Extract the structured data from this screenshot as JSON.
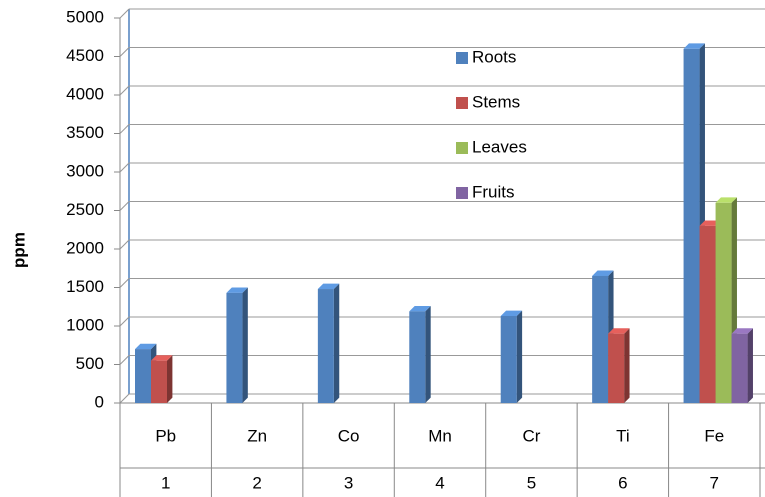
{
  "chart_data": {
    "type": "bar3d",
    "y_label": "ppm",
    "categories": [
      "Pb",
      "Zn",
      "Co",
      "Mn",
      "Cr",
      "Ti",
      "Fe"
    ],
    "categories_level2": [
      1,
      2,
      3,
      4,
      5,
      6,
      7
    ],
    "series": [
      {
        "name": "Roots",
        "color": "#4f81bd",
        "values": [
          700,
          1430,
          1480,
          1190,
          1130,
          1650,
          4600
        ]
      },
      {
        "name": "Stems",
        "color": "#c0504d",
        "values": [
          550,
          null,
          null,
          null,
          null,
          900,
          2300
        ]
      },
      {
        "name": "Leaves",
        "color": "#9bbb59",
        "values": [
          null,
          null,
          null,
          null,
          null,
          null,
          2600
        ]
      },
      {
        "name": "Fruits",
        "color": "#8064a2",
        "values": [
          null,
          null,
          null,
          null,
          null,
          null,
          900
        ]
      }
    ],
    "ylim": [
      0,
      5000
    ],
    "yticks": [
      0,
      500,
      1000,
      1500,
      2000,
      2500,
      3000,
      3500,
      4000,
      4500,
      5000
    ],
    "grid": true
  }
}
